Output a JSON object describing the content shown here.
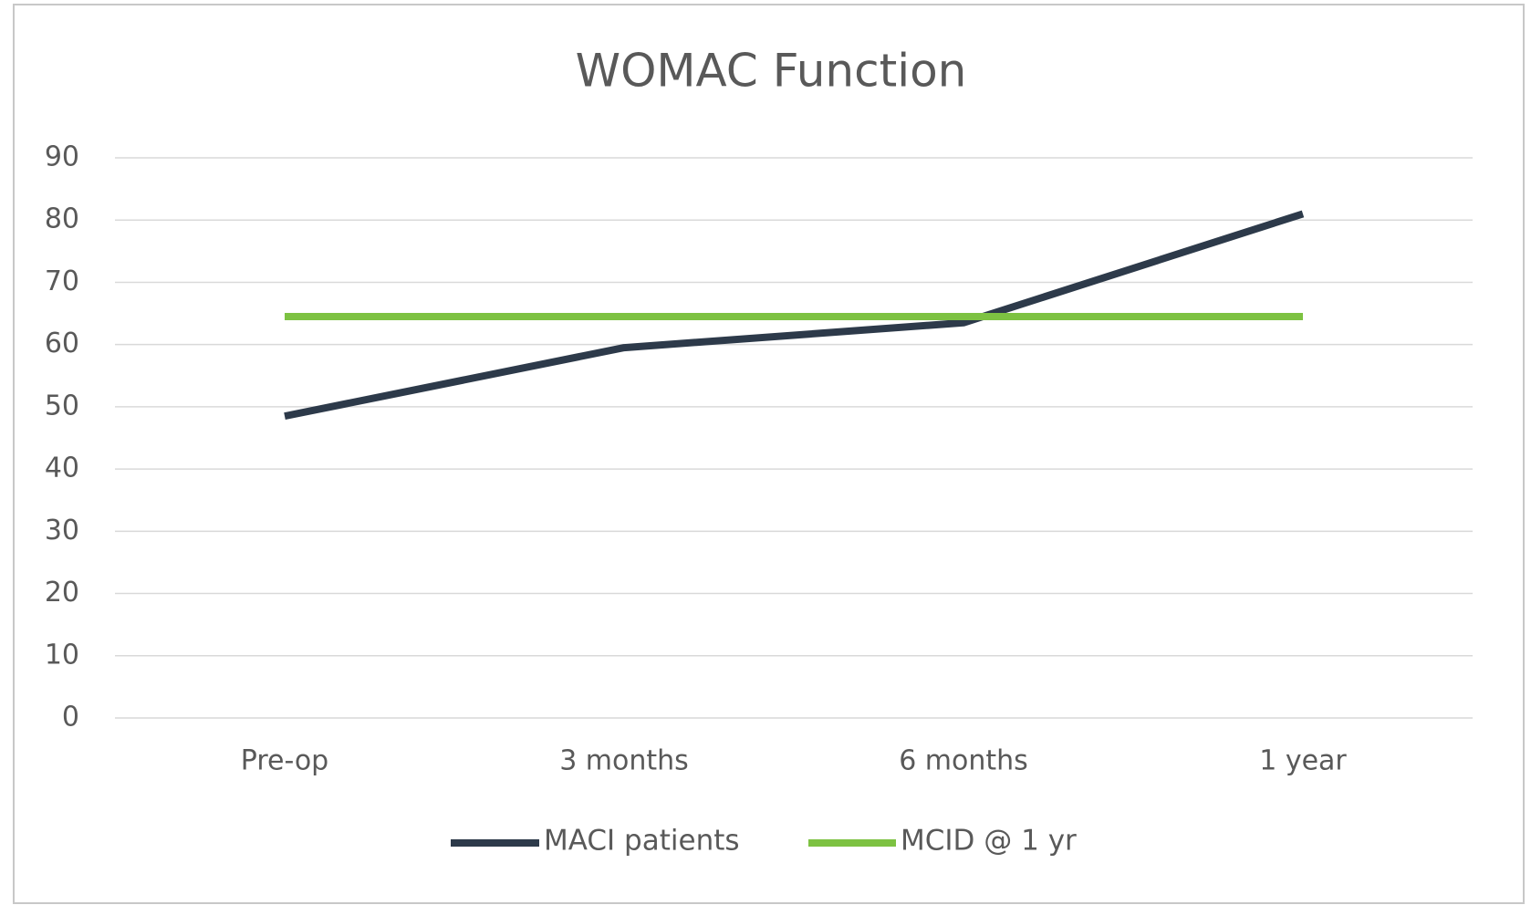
{
  "chart_data": {
    "type": "line",
    "title": "WOMAC Function",
    "categories": [
      "Pre-op",
      "3 months",
      "6 months",
      "1 year"
    ],
    "series": [
      {
        "name": "MACI patients",
        "color": "#2d3a4a",
        "values": [
          48.5,
          59.5,
          63.5,
          81
        ]
      },
      {
        "name": "MCID @ 1 yr",
        "color": "#7dc242",
        "values": [
          64.5,
          64.5,
          64.5,
          64.5
        ]
      }
    ],
    "ylim": [
      0,
      90
    ],
    "yticks": [
      0,
      10,
      20,
      30,
      40,
      50,
      60,
      70,
      80,
      90
    ],
    "grid": true,
    "legend": "bottom"
  }
}
